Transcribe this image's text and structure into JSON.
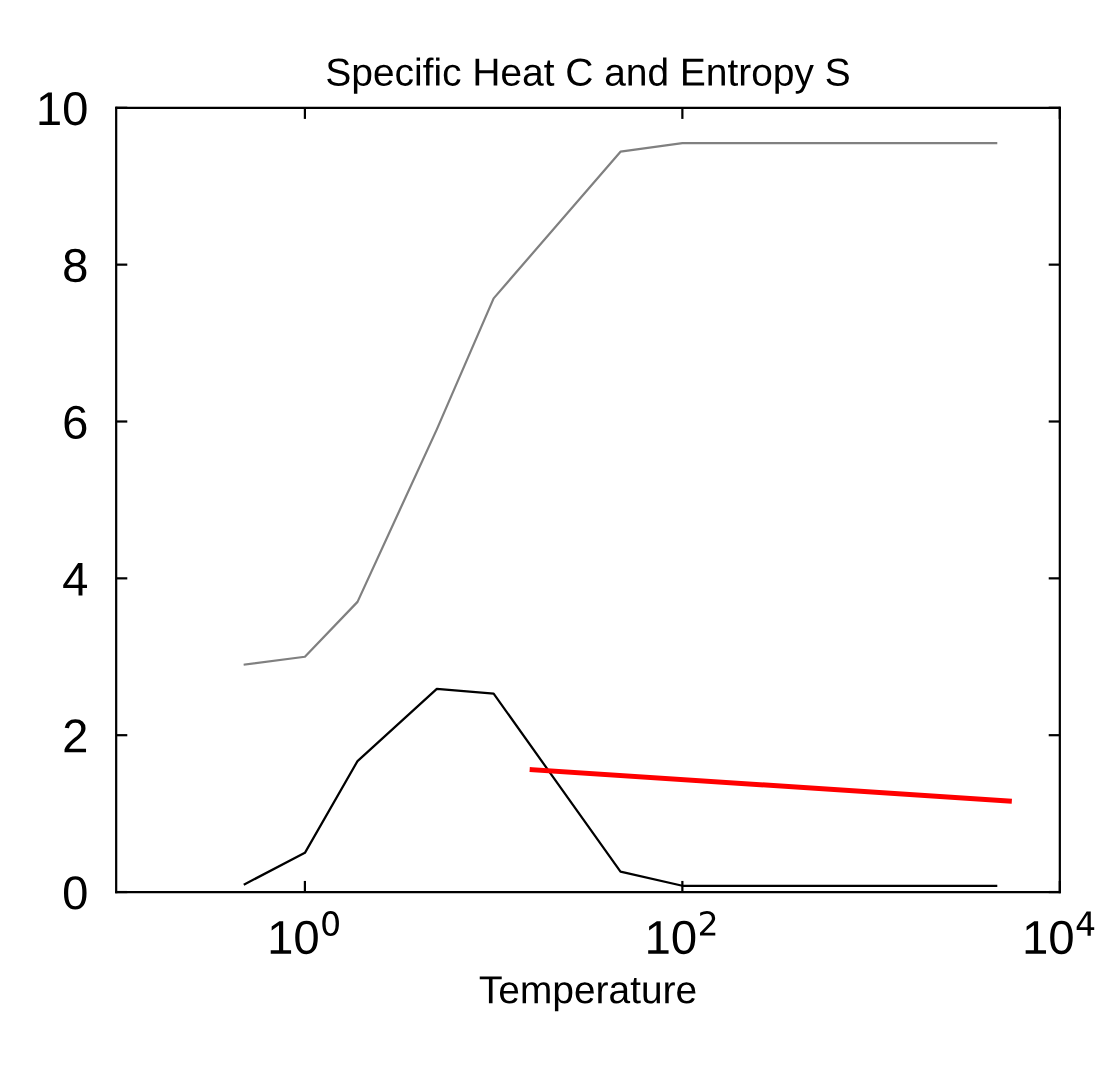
{
  "chart_data": {
    "type": "line",
    "title": "Specific Heat C and Entropy S",
    "xlabel": "Temperature",
    "log": "x",
    "xlim": [
      0.1,
      10000
    ],
    "xticks": [
      {
        "value": 1,
        "label": "10$^{0}$"
      },
      {
        "value": 100,
        "label": "10$^{2}$"
      },
      {
        "value": 10000,
        "label": "10$^{4}$"
      }
    ],
    "ylim": [
      0,
      10
    ],
    "yticks": [
      0,
      2,
      4,
      6,
      8,
      10
    ],
    "grid": false,
    "marker": "none",
    "line_style": "solid",
    "series": [
      {
        "color": "#808080",
        "x": [
          0.48,
          1,
          1.9,
          5,
          10,
          47,
          100,
          4600
        ],
        "values": [
          2.9,
          3.0,
          3.7,
          5.9,
          7.57,
          9.44,
          9.55,
          9.55
        ]
      },
      {
        "color": "#000000",
        "x": [
          0.48,
          1,
          1.9,
          5,
          10,
          47,
          100,
          4600
        ],
        "values": [
          0.1,
          0.5,
          1.67,
          2.59,
          2.53,
          0.26,
          0.08,
          0.08
        ]
      },
      {
        "color": "#ff0000",
        "x": [
          16,
          5400
        ],
        "values": [
          1.56,
          1.16
        ]
      }
    ]
  }
}
